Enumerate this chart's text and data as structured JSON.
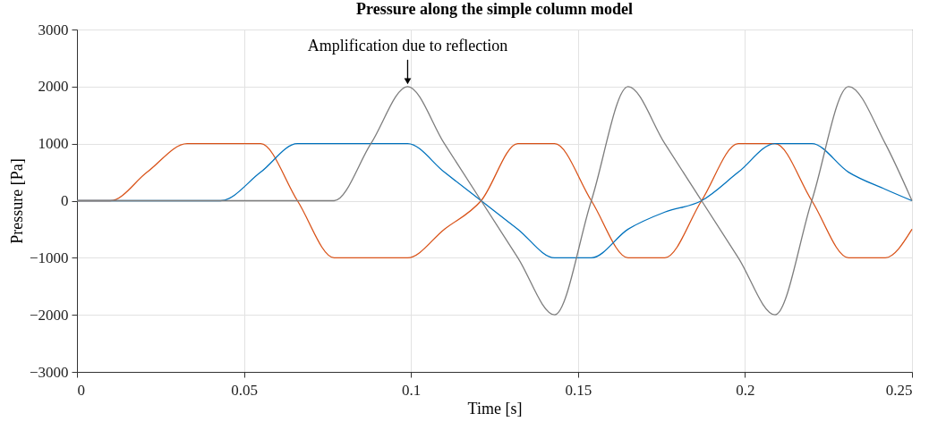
{
  "chart_data": {
    "type": "line",
    "title": "Pressure along the simple column model",
    "xlabel": "Time [s]",
    "ylabel": "Pressure [Pa]",
    "annotations": [
      {
        "text": "Amplification due to reflection",
        "x": 0.099,
        "y": 2000
      }
    ],
    "series": [
      {
        "color": "#d95319",
        "x": [
          0,
          0.01,
          0.021,
          0.033,
          0.044,
          0.055,
          0.066,
          0.077,
          0.088,
          0.099,
          0.11,
          0.121,
          0.132,
          0.143,
          0.154,
          0.165,
          0.176,
          0.187,
          0.198,
          0.209,
          0.22,
          0.231,
          0.242,
          0.25
        ],
        "values": [
          0,
          0,
          500,
          1000,
          1000,
          1000,
          0,
          -1000,
          -1000,
          -1000,
          -500,
          0,
          1000,
          1000,
          0,
          -1000,
          -1000,
          0,
          1000,
          1000,
          0,
          -1000,
          -1000,
          -500
        ]
      },
      {
        "color": "#0072bd",
        "x": [
          0,
          0.043,
          0.055,
          0.066,
          0.077,
          0.088,
          0.099,
          0.11,
          0.121,
          0.132,
          0.143,
          0.154,
          0.165,
          0.176,
          0.187,
          0.198,
          0.209,
          0.22,
          0.231,
          0.242,
          0.25
        ],
        "values": [
          0,
          0,
          500,
          1000,
          1000,
          1000,
          1000,
          500,
          0,
          -500,
          -1000,
          -1000,
          -500,
          -200,
          0,
          500,
          1000,
          1000,
          500,
          200,
          0
        ]
      },
      {
        "color": "#7e7e7e",
        "x": [
          0,
          0.077,
          0.088,
          0.099,
          0.11,
          0.121,
          0.132,
          0.143,
          0.154,
          0.165,
          0.176,
          0.187,
          0.198,
          0.209,
          0.22,
          0.231,
          0.242,
          0.25
        ],
        "values": [
          0,
          0,
          1000,
          2000,
          1000,
          0,
          -1000,
          -2000,
          0,
          2000,
          1000,
          0,
          -1000,
          -2000,
          0,
          2000,
          1000,
          0
        ]
      }
    ],
    "xlim": [
      0,
      0.25
    ],
    "xticks": [
      0,
      0.05,
      0.1,
      0.15,
      0.2,
      0.25
    ],
    "ylim": [
      -3000,
      3000
    ],
    "yticks": [
      -3000,
      -2000,
      -1000,
      0,
      1000,
      2000,
      3000
    ],
    "grid": true,
    "legend": false,
    "marker": "none",
    "line_style": "solid"
  }
}
